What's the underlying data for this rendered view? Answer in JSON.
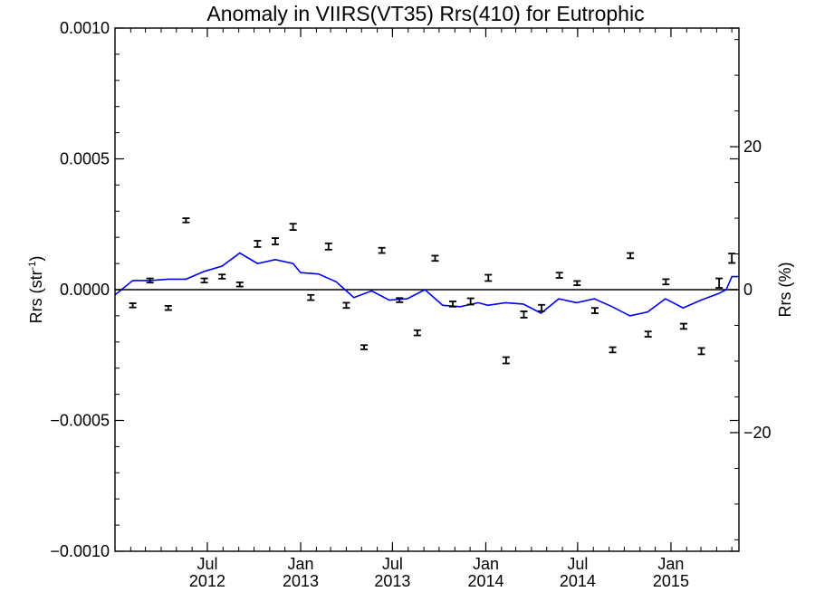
{
  "chart_data": {
    "type": "line",
    "title": "Anomaly in VIIRS(VT35) Rrs(410) for Eutrophic",
    "ylabel": "Rrs (str",
    "ylabel_superscript": "-1",
    "ylabel_close": ")",
    "y2label": "Rrs (%)",
    "ylim": [
      -0.001,
      0.001
    ],
    "y2lim": [
      -36.6,
      36.6
    ],
    "xlim": [
      "2012-01-01",
      "2015-05-15"
    ],
    "y_ticks": [
      {
        "value": -0.001,
        "label": "−0.0010"
      },
      {
        "value": -0.0005,
        "label": "−0.0005"
      },
      {
        "value": 0.0,
        "label": "0.0000"
      },
      {
        "value": 0.0005,
        "label": "0.0005"
      },
      {
        "value": 0.001,
        "label": "0.0010"
      }
    ],
    "y2_ticks": [
      {
        "value": -20,
        "label": "−20"
      },
      {
        "value": 0,
        "label": "0"
      },
      {
        "value": 20,
        "label": "20"
      }
    ],
    "x_ticks": [
      {
        "date": "2012-07-01",
        "month": "Jul",
        "year": "2012"
      },
      {
        "date": "2013-01-01",
        "month": "Jan",
        "year": "2013"
      },
      {
        "date": "2013-07-01",
        "month": "Jul",
        "year": "2013"
      },
      {
        "date": "2014-01-01",
        "month": "Jan",
        "year": "2014"
      },
      {
        "date": "2014-07-01",
        "month": "Jul",
        "year": "2014"
      },
      {
        "date": "2015-01-01",
        "month": "Jan",
        "year": "2015"
      }
    ],
    "reference_line": 0,
    "colors": {
      "line": "#0000ee",
      "points": "#000000",
      "axes": "#000000"
    },
    "series": [
      {
        "type": "errorbar",
        "points": [
          {
            "date": "2012-02-05",
            "y": -6e-05,
            "err": 8e-06
          },
          {
            "date": "2012-03-10",
            "y": 3.5e-05,
            "err": 8e-06
          },
          {
            "date": "2012-04-15",
            "y": -7e-05,
            "err": 8e-06
          },
          {
            "date": "2012-05-20",
            "y": 0.000265,
            "err": 8e-06
          },
          {
            "date": "2012-06-25",
            "y": 3.5e-05,
            "err": 8e-06
          },
          {
            "date": "2012-07-30",
            "y": 5e-05,
            "err": 8e-06
          },
          {
            "date": "2012-09-03",
            "y": 2e-05,
            "err": 8e-06
          },
          {
            "date": "2012-10-08",
            "y": 0.000175,
            "err": 1.2e-05
          },
          {
            "date": "2012-11-12",
            "y": 0.000185,
            "err": 1.2e-05
          },
          {
            "date": "2012-12-17",
            "y": 0.00024,
            "err": 1.2e-05
          },
          {
            "date": "2013-01-21",
            "y": -3e-05,
            "err": 1e-05
          },
          {
            "date": "2013-02-25",
            "y": 0.000165,
            "err": 1.2e-05
          },
          {
            "date": "2013-04-01",
            "y": -6e-05,
            "err": 1e-05
          },
          {
            "date": "2013-05-06",
            "y": -0.00022,
            "err": 8e-06
          },
          {
            "date": "2013-06-10",
            "y": 0.00015,
            "err": 1e-05
          },
          {
            "date": "2013-07-15",
            "y": -4e-05,
            "err": 8e-06
          },
          {
            "date": "2013-08-19",
            "y": -0.000165,
            "err": 1e-05
          },
          {
            "date": "2013-09-23",
            "y": 0.00012,
            "err": 1e-05
          },
          {
            "date": "2013-10-28",
            "y": -5.5e-05,
            "err": 1e-05
          },
          {
            "date": "2013-12-02",
            "y": -4.5e-05,
            "err": 1.2e-05
          },
          {
            "date": "2014-01-06",
            "y": 4.5e-05,
            "err": 1.2e-05
          },
          {
            "date": "2014-02-10",
            "y": -0.00027,
            "err": 1.2e-05
          },
          {
            "date": "2014-03-17",
            "y": -9.5e-05,
            "err": 1.2e-05
          },
          {
            "date": "2014-04-21",
            "y": -7e-05,
            "err": 1.2e-05
          },
          {
            "date": "2014-05-26",
            "y": 5.5e-05,
            "err": 1e-05
          },
          {
            "date": "2014-06-30",
            "y": 2.5e-05,
            "err": 8e-06
          },
          {
            "date": "2014-08-04",
            "y": -8e-05,
            "err": 1e-05
          },
          {
            "date": "2014-09-08",
            "y": -0.00023,
            "err": 1e-05
          },
          {
            "date": "2014-10-13",
            "y": 0.00013,
            "err": 1e-05
          },
          {
            "date": "2014-11-17",
            "y": -0.00017,
            "err": 1e-05
          },
          {
            "date": "2014-12-22",
            "y": 3e-05,
            "err": 1e-05
          },
          {
            "date": "2015-01-26",
            "y": -0.00014,
            "err": 1e-05
          },
          {
            "date": "2015-03-02",
            "y": -0.000235,
            "err": 1.2e-05
          },
          {
            "date": "2015-04-06",
            "y": 2.5e-05,
            "err": 1.8e-05
          },
          {
            "date": "2015-05-01",
            "y": 0.00012,
            "err": 1.8e-05
          }
        ]
      },
      {
        "type": "line",
        "points": [
          {
            "date": "2012-01-01",
            "y": -2e-05
          },
          {
            "date": "2012-02-05",
            "y": 3.5e-05
          },
          {
            "date": "2012-03-10",
            "y": 3.5e-05
          },
          {
            "date": "2012-04-15",
            "y": 4e-05
          },
          {
            "date": "2012-05-20",
            "y": 4e-05
          },
          {
            "date": "2012-06-25",
            "y": 7e-05
          },
          {
            "date": "2012-07-30",
            "y": 9e-05
          },
          {
            "date": "2012-09-03",
            "y": 0.00014
          },
          {
            "date": "2012-10-08",
            "y": 0.0001
          },
          {
            "date": "2012-11-12",
            "y": 0.000115
          },
          {
            "date": "2012-12-17",
            "y": 0.0001
          },
          {
            "date": "2013-01-01",
            "y": 6.5e-05
          },
          {
            "date": "2013-02-05",
            "y": 6e-05
          },
          {
            "date": "2013-03-12",
            "y": 3e-05
          },
          {
            "date": "2013-04-16",
            "y": -3e-05
          },
          {
            "date": "2013-05-21",
            "y": -5e-06
          },
          {
            "date": "2013-06-25",
            "y": -4e-05
          },
          {
            "date": "2013-07-30",
            "y": -3.5e-05
          },
          {
            "date": "2013-09-03",
            "y": 0.0
          },
          {
            "date": "2013-10-08",
            "y": -6e-05
          },
          {
            "date": "2013-11-12",
            "y": -6.5e-05
          },
          {
            "date": "2013-12-17",
            "y": -5e-05
          },
          {
            "date": "2014-01-05",
            "y": -6e-05
          },
          {
            "date": "2014-02-09",
            "y": -5e-05
          },
          {
            "date": "2014-03-16",
            "y": -5.5e-05
          },
          {
            "date": "2014-04-20",
            "y": -9e-05
          },
          {
            "date": "2014-05-25",
            "y": -3.5e-05
          },
          {
            "date": "2014-06-29",
            "y": -5e-05
          },
          {
            "date": "2014-08-03",
            "y": -3.5e-05
          },
          {
            "date": "2014-09-07",
            "y": -6.5e-05
          },
          {
            "date": "2014-10-12",
            "y": -0.0001
          },
          {
            "date": "2014-11-16",
            "y": -8.5e-05
          },
          {
            "date": "2014-12-21",
            "y": -3.5e-05
          },
          {
            "date": "2015-01-25",
            "y": -7e-05
          },
          {
            "date": "2015-03-01",
            "y": -4e-05
          },
          {
            "date": "2015-04-05",
            "y": -1.5e-05
          },
          {
            "date": "2015-04-20",
            "y": 0.0
          },
          {
            "date": "2015-05-01",
            "y": 5e-05
          },
          {
            "date": "2015-05-15",
            "y": 5e-05
          }
        ]
      }
    ]
  }
}
